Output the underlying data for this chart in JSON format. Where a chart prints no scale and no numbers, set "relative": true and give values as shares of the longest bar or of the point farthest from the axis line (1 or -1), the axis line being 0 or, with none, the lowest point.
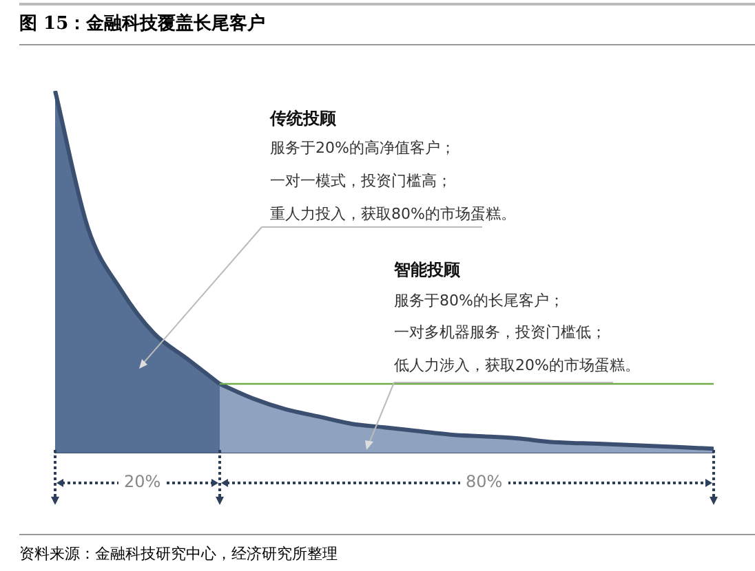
{
  "chart_data": {
    "type": "area",
    "title": "图 15：金融科技覆盖长尾客户",
    "relative": true,
    "categories": [
      null,
      null,
      null,
      null,
      null,
      null,
      null,
      null,
      null,
      null,
      null,
      null,
      null,
      null,
      null,
      null,
      null,
      null,
      null,
      null,
      null
    ],
    "series": [
      {
        "color": "#566f94",
        "values": [
          1,
          0.62,
          0.45,
          0.33,
          0.26,
          0.19,
          null,
          null,
          null,
          null,
          null,
          null,
          null,
          null,
          null,
          null,
          null,
          null,
          null,
          null,
          null
        ]
      },
      {
        "color": "#8fa2bf",
        "values": [
          null,
          null,
          null,
          null,
          null,
          0.19,
          0.15,
          0.12,
          0.1,
          0.08,
          0.07,
          0.06,
          0.05,
          0.045,
          0.04,
          0.03,
          0.026,
          0.023,
          0.019,
          0.015,
          0.011
        ]
      }
    ],
    "ref_lines": [
      {
        "axis": "y",
        "value": 0.19,
        "color": "#70ad47"
      }
    ],
    "annotations": [
      "传统投顾",
      "服务于20%的高净值客户；",
      "一对一模式，投资门槛高；",
      "重人力投入，获取80%的市场蛋糕。",
      "智能投顾",
      "服务于80%的长尾客户；",
      "一对多机器服务，投资门槛低；",
      "低人力涉入，获取20%的市场蛋糕。",
      "20%",
      "80%",
      "资料来源：金融科技研究中心，经济研究所整理"
    ]
  }
}
